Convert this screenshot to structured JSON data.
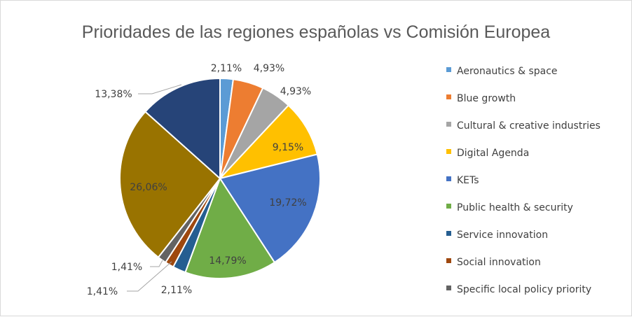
{
  "chart_data": {
    "type": "pie",
    "title": "Prioridades de las regiones españolas vs Comisión  Europea",
    "legend_position": "right",
    "slices": [
      {
        "name": "Aeronautics & space",
        "value": 2.11,
        "label": "2,11%",
        "color": "#5B9BD5"
      },
      {
        "name": "Blue growth",
        "value": 4.93,
        "label": "4,93%",
        "color": "#ED7D31"
      },
      {
        "name": "Cultural & creative industries",
        "value": 4.93,
        "label": "4,93%",
        "color": "#A5A5A5"
      },
      {
        "name": "Digital Agenda",
        "value": 9.15,
        "label": "9,15%",
        "color": "#FFC000"
      },
      {
        "name": "KETs",
        "value": 19.72,
        "label": "19,72%",
        "color": "#4472C4"
      },
      {
        "name": "Public health & security",
        "value": 14.79,
        "label": "14,79%",
        "color": "#70AD47"
      },
      {
        "name": "Service innovation",
        "value": 2.11,
        "label": "2,11%",
        "color": "#255E91"
      },
      {
        "name": "Social innovation",
        "value": 1.41,
        "label": "1,41%",
        "color": "#9E480E"
      },
      {
        "name": "Specific local policy priority",
        "value": 1.41,
        "label": "1,41%",
        "color": "#636363"
      },
      {
        "name": "",
        "value": 26.06,
        "label": "26,06%",
        "color": "#997300"
      },
      {
        "name": "",
        "value": 13.38,
        "label": "13,38%",
        "color": "#264478"
      }
    ]
  }
}
